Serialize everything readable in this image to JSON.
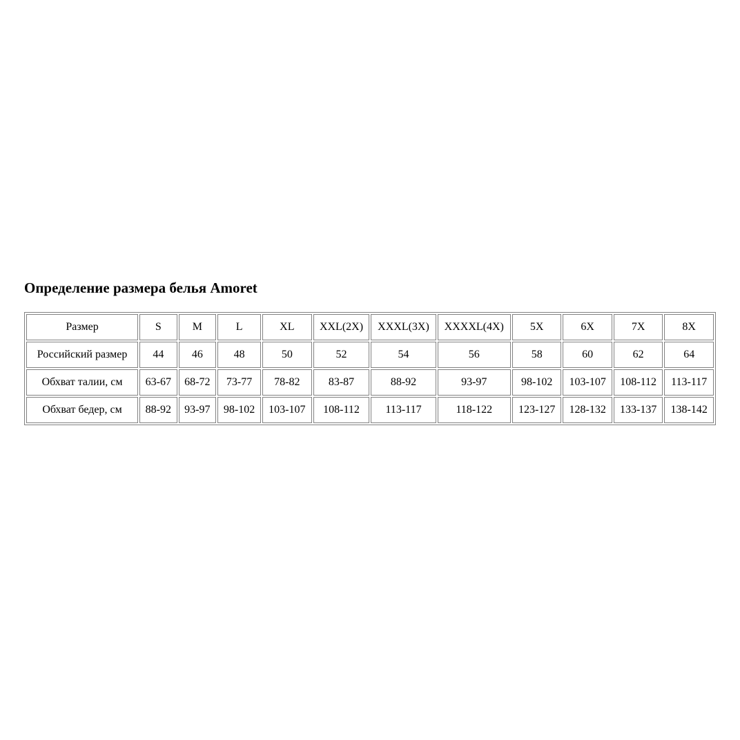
{
  "page": {
    "title": "Определение размера белья Amoret"
  },
  "colors": {
    "table_border": "#808080",
    "text": "#000000",
    "background": "#ffffff"
  },
  "size_table": {
    "rows": [
      {
        "label": "Размер",
        "values": [
          "S",
          "M",
          "L",
          "XL",
          "XXL(2X)",
          "XXXL(3X)",
          "XXXXL(4X)",
          "5X",
          "6X",
          "7X",
          "8X"
        ]
      },
      {
        "label": "Российский размер",
        "values": [
          "44",
          "46",
          "48",
          "50",
          "52",
          "54",
          "56",
          "58",
          "60",
          "62",
          "64"
        ]
      },
      {
        "label": "Обхват талии, см",
        "values": [
          "63-67",
          "68-72",
          "73-77",
          "78-82",
          "83-87",
          "88-92",
          "93-97",
          "98-102",
          "103-107",
          "108-112",
          "113-117"
        ]
      },
      {
        "label": "Обхват бедер, см",
        "values": [
          "88-92",
          "93-97",
          "98-102",
          "103-107",
          "108-112",
          "113-117",
          "118-122",
          "123-127",
          "128-132",
          "133-137",
          "138-142"
        ]
      }
    ]
  }
}
